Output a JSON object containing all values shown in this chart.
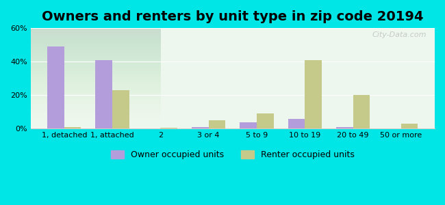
{
  "title": "Owners and renters by unit type in zip code 20194",
  "categories": [
    "1, detached",
    "1, attached",
    "2",
    "3 or 4",
    "5 to 9",
    "10 to 19",
    "20 to 49",
    "50 or more"
  ],
  "owner_values": [
    49,
    41,
    0,
    1,
    4,
    6,
    1,
    0
  ],
  "renter_values": [
    1,
    23,
    0.5,
    5,
    9,
    41,
    20,
    3
  ],
  "owner_color": "#b39ddb",
  "renter_color": "#c5c98a",
  "bg_color": "#00e5e5",
  "plot_bg_gradient_top": "#f0faf0",
  "plot_bg_gradient_bottom": "#ffffff",
  "ylim": [
    0,
    60
  ],
  "yticks": [
    0,
    20,
    40,
    60
  ],
  "ytick_labels": [
    "0%",
    "20%",
    "40%",
    "60%"
  ],
  "title_fontsize": 14,
  "tick_fontsize": 8,
  "legend_fontsize": 9,
  "bar_width": 0.35,
  "watermark": "City-Data.com"
}
